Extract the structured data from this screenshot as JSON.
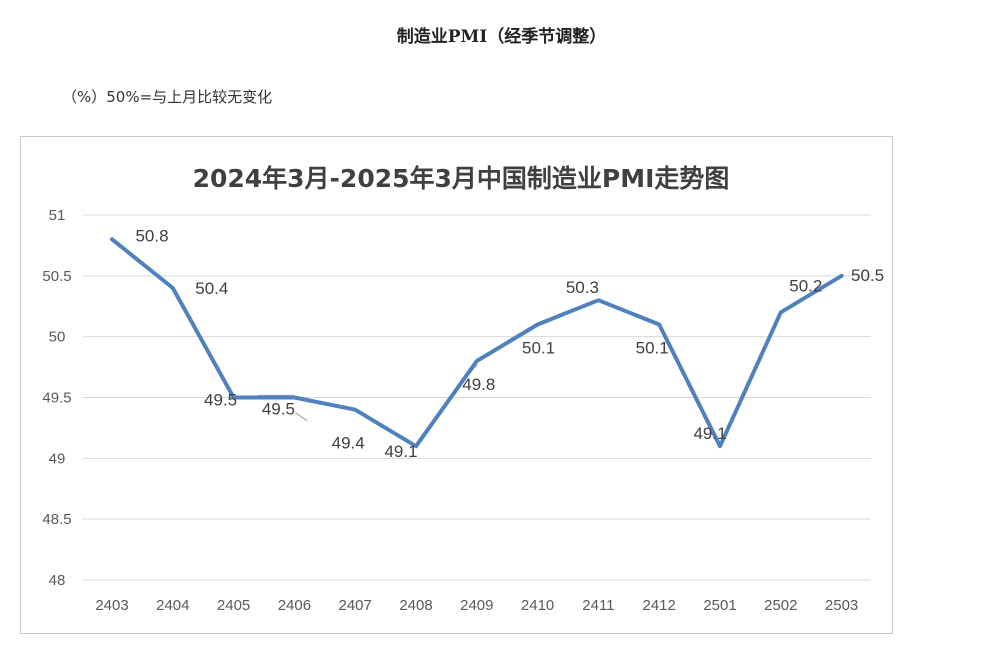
{
  "page": {
    "title": "制造业PMI（经季节调整）",
    "unit_note": "（%）50%=与上月比较无变化"
  },
  "chart_data": {
    "type": "line",
    "title": "2024年3月-2025年3月中国制造业PMI走势图",
    "categories": [
      "2403",
      "2404",
      "2405",
      "2406",
      "2407",
      "2408",
      "2409",
      "2410",
      "2411",
      "2412",
      "2501",
      "2502",
      "2503"
    ],
    "series": [
      {
        "values": [
          50.8,
          50.4,
          49.5,
          49.5,
          49.4,
          49.1,
          49.8,
          50.1,
          50.3,
          50.1,
          49.1,
          50.2,
          50.5
        ]
      }
    ],
    "ylim": [
      48,
      51
    ],
    "yticks": [
      48,
      48.5,
      49,
      49.5,
      50,
      50.5,
      51
    ],
    "ytick_labels": [
      "48",
      "48.5",
      "49",
      "49.5",
      "50",
      "50.5",
      "51"
    ],
    "data_labels": [
      "50.8",
      "50.4",
      "49.5",
      "49.5",
      "49.4",
      "49.1",
      "49.8",
      "50.1",
      "50.3",
      "50.1",
      "49.1",
      "50.2",
      "50.5"
    ],
    "grid": true,
    "line_color": "#4f81bd",
    "grid_color": "#d9d9d9"
  }
}
